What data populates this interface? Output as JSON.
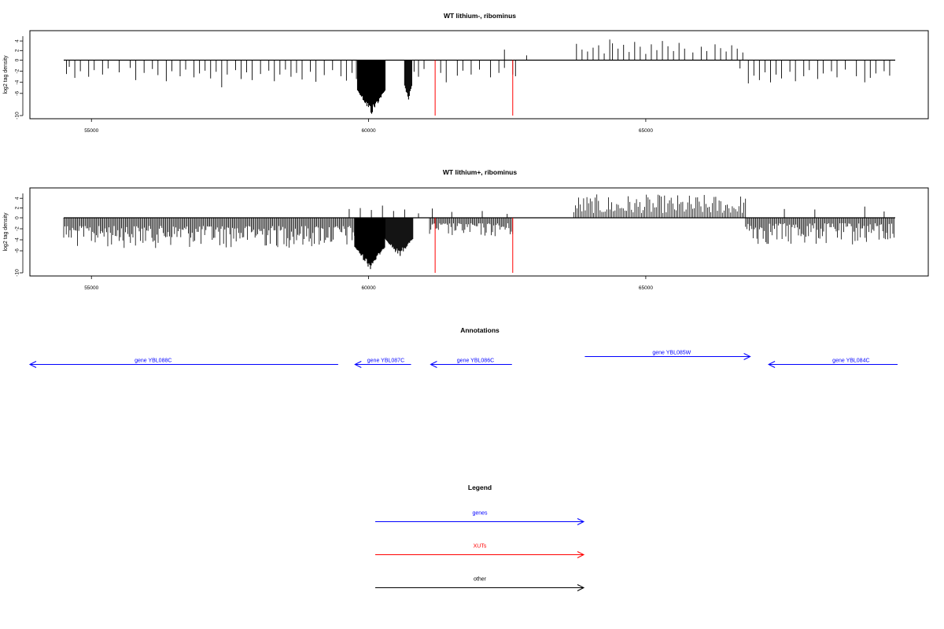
{
  "chart_data": [
    {
      "type": "bar",
      "title": "WT lithium-, ribominus",
      "xlabel": "",
      "ylabel": "log2 tag density",
      "xlim": [
        53900,
        70000
      ],
      "ylim": [
        -10,
        5
      ],
      "x_ticks": [
        55000,
        60000,
        65000
      ],
      "x_tick_labels": [
        "55000",
        "60000",
        "65000"
      ],
      "y_ticks": [
        4,
        2,
        0,
        -2,
        -4,
        -6,
        -10
      ],
      "y_tick_labels": [
        "4",
        "2",
        "0",
        "-2",
        "-4",
        "-6",
        "-10"
      ],
      "grid": false,
      "baseline": {
        "y": 0,
        "x_range": [
          54500,
          69500
        ]
      },
      "series": [
        {
          "style": "negative-bars",
          "color": "#000000",
          "points": [
            [
              54550,
              -2.5
            ],
            [
              54600,
              -1.2
            ],
            [
              54700,
              -3.2
            ],
            [
              54800,
              -2.0
            ],
            [
              54950,
              -3.0
            ],
            [
              55050,
              -1.8
            ],
            [
              55200,
              -2.6
            ],
            [
              55300,
              -1.5
            ],
            [
              55500,
              -2.2
            ],
            [
              55700,
              -1.4
            ],
            [
              55800,
              -3.6
            ],
            [
              55950,
              -2.3
            ],
            [
              56100,
              -1.6
            ],
            [
              56200,
              -2.7
            ],
            [
              56350,
              -3.8
            ],
            [
              56450,
              -2.0
            ],
            [
              56600,
              -2.9
            ],
            [
              56700,
              -1.7
            ],
            [
              56850,
              -3.1
            ],
            [
              56950,
              -2.4
            ],
            [
              57050,
              -1.9
            ],
            [
              57150,
              -3.3
            ],
            [
              57250,
              -2.1
            ],
            [
              57350,
              -4.9
            ],
            [
              57450,
              -2.6
            ],
            [
              57600,
              -1.8
            ],
            [
              57700,
              -3.4
            ],
            [
              57800,
              -2.2
            ],
            [
              57900,
              -3.6
            ],
            [
              58050,
              -2.5
            ],
            [
              58200,
              -1.9
            ],
            [
              58300,
              -3.8
            ],
            [
              58400,
              -2.6
            ],
            [
              58500,
              -1.7
            ],
            [
              58600,
              -3.0
            ],
            [
              58700,
              -2.3
            ],
            [
              58800,
              -3.5
            ],
            [
              58950,
              -2.1
            ],
            [
              59050,
              -3.9
            ],
            [
              59200,
              -2.7
            ],
            [
              59350,
              -1.8
            ],
            [
              59500,
              -2.9
            ],
            [
              59600,
              -3.7
            ],
            [
              59700,
              -2.3
            ],
            [
              59780,
              -3.4
            ],
            [
              60820,
              -2.1
            ],
            [
              60900,
              -3.0
            ],
            [
              61000,
              -1.6
            ],
            [
              61300,
              -2.3
            ],
            [
              61400,
              -4.0
            ],
            [
              61600,
              -2.8
            ],
            [
              61700,
              -1.9
            ],
            [
              61850,
              -2.6
            ],
            [
              62000,
              -1.7
            ],
            [
              62200,
              -3.1
            ],
            [
              62350,
              -2.3
            ],
            [
              62450,
              -1.4
            ],
            [
              62600,
              -2.6
            ],
            [
              62650,
              -2.9
            ],
            [
              66700,
              -1.5
            ],
            [
              66850,
              -4.2
            ],
            [
              66950,
              -2.8
            ],
            [
              67050,
              -3.6
            ],
            [
              67150,
              -2.2
            ],
            [
              67250,
              -4.0
            ],
            [
              67350,
              -2.6
            ],
            [
              67450,
              -3.3
            ],
            [
              67600,
              -2.1
            ],
            [
              67700,
              -3.8
            ],
            [
              67850,
              -2.9
            ],
            [
              67950,
              -1.8
            ],
            [
              68100,
              -3.4
            ],
            [
              68200,
              -2.4
            ],
            [
              68350,
              -2.0
            ],
            [
              68450,
              -3.1
            ],
            [
              68600,
              -1.7
            ],
            [
              68800,
              -2.9
            ],
            [
              68950,
              -4.0
            ],
            [
              69050,
              -3.2
            ],
            [
              69150,
              -2.4
            ],
            [
              69300,
              -2.0
            ],
            [
              69400,
              -2.8
            ]
          ]
        },
        {
          "style": "dense-negative-block",
          "color": "#000000",
          "x_range": [
            59800,
            60300
          ],
          "depth": [
            -3,
            -10
          ]
        },
        {
          "style": "dense-negative-block",
          "color": "#000000",
          "x_range": [
            60650,
            60780
          ],
          "depth": [
            -3,
            -7.5
          ]
        },
        {
          "style": "positive-bars",
          "color": "#000000",
          "points": [
            [
              62450,
              2.2
            ],
            [
              62850,
              1.0
            ],
            [
              63750,
              3.4
            ],
            [
              63850,
              2.2
            ],
            [
              63950,
              1.8
            ],
            [
              64050,
              2.6
            ],
            [
              64150,
              3.1
            ],
            [
              64250,
              1.4
            ],
            [
              64350,
              4.3
            ],
            [
              64400,
              3.5
            ],
            [
              64500,
              2.4
            ],
            [
              64600,
              3.2
            ],
            [
              64700,
              1.7
            ],
            [
              64800,
              3.8
            ],
            [
              64900,
              2.8
            ],
            [
              65000,
              1.3
            ],
            [
              65100,
              3.3
            ],
            [
              65200,
              2.1
            ],
            [
              65300,
              4.0
            ],
            [
              65400,
              2.9
            ],
            [
              65500,
              1.9
            ],
            [
              65600,
              3.6
            ],
            [
              65700,
              2.4
            ],
            [
              65850,
              1.6
            ],
            [
              66000,
              2.8
            ],
            [
              66100,
              1.9
            ],
            [
              66250,
              3.3
            ],
            [
              66350,
              2.5
            ],
            [
              66450,
              1.8
            ],
            [
              66550,
              3.1
            ],
            [
              66650,
              2.4
            ],
            [
              66750,
              1.6
            ]
          ]
        },
        {
          "style": "xut-markers",
          "color": "#ff0000",
          "x": [
            61200,
            62600
          ],
          "depth": -10
        }
      ]
    },
    {
      "type": "bar",
      "title": "WT lithium+, ribominus",
      "xlabel": "",
      "ylabel": "log2 tag density",
      "xlim": [
        53900,
        70000
      ],
      "ylim": [
        -10,
        5
      ],
      "x_ticks": [
        55000,
        60000,
        65000
      ],
      "x_tick_labels": [
        "55000",
        "60000",
        "65000"
      ],
      "y_ticks": [
        4,
        2,
        0,
        -2,
        -4,
        -6,
        -10
      ],
      "y_tick_labels": [
        "4",
        "2",
        "0",
        "-2",
        "-4",
        "-6",
        "-10"
      ],
      "grid": false,
      "baseline": {
        "y": 0,
        "x_range": [
          54500,
          69500
        ]
      },
      "series": [
        {
          "style": "dense-negative-band",
          "color": "#000000",
          "x_range": [
            54500,
            59800
          ],
          "depth": [
            -1.5,
            -5.5
          ]
        },
        {
          "style": "dense-negative-block",
          "color": "#000000",
          "x_range": [
            59750,
            60300
          ],
          "depth": [
            -3,
            -9.5
          ]
        },
        {
          "style": "dense-negative-block",
          "color": "#000000",
          "x_range": [
            60300,
            60800
          ],
          "depth": [
            -2,
            -7.2
          ]
        },
        {
          "style": "dense-negative-band",
          "color": "#000000",
          "x_range": [
            61100,
            62600
          ],
          "depth": [
            -1,
            -3.5
          ]
        },
        {
          "style": "dense-negative-band",
          "color": "#000000",
          "x_range": [
            66800,
            69500
          ],
          "depth": [
            -1,
            -5
          ]
        },
        {
          "style": "dense-positive-band",
          "color": "#000000",
          "x_range": [
            63700,
            66800
          ],
          "height": [
            1,
            4.8
          ]
        },
        {
          "style": "positive-bars",
          "color": "#000000",
          "points": [
            [
              59650,
              1.8
            ],
            [
              59850,
              2.0
            ],
            [
              60050,
              1.6
            ],
            [
              60250,
              2.5
            ],
            [
              60450,
              1.4
            ],
            [
              60650,
              1.7
            ],
            [
              60900,
              0.9
            ],
            [
              61150,
              1.9
            ],
            [
              61500,
              1.2
            ],
            [
              62050,
              1.4
            ],
            [
              62500,
              0.8
            ],
            [
              67500,
              1.8
            ],
            [
              68050,
              1.7
            ],
            [
              68950,
              2.3
            ],
            [
              69300,
              1.3
            ]
          ]
        },
        {
          "style": "xut-markers",
          "color": "#ff0000",
          "x": [
            61200,
            62600
          ],
          "depth": -10
        }
      ]
    }
  ],
  "annotations": {
    "title": "Annotations",
    "genes": [
      {
        "label": "gene YBL088C",
        "strand": "-",
        "start": 53900,
        "end": 59400,
        "label_x": 56100
      },
      {
        "label": "gene YBL087C",
        "strand": "-",
        "start": 59700,
        "end": 60700,
        "label_x": 60250
      },
      {
        "label": "gene YBL086C",
        "strand": "-",
        "start": 61050,
        "end": 62500,
        "label_x": 61850
      },
      {
        "label": "gene YBL085W",
        "strand": "+",
        "start": 63800,
        "end": 66750,
        "label_x": 65350
      },
      {
        "label": "gene YBL084C",
        "strand": "-",
        "start": 67080,
        "end": 69380,
        "label_x": 68550
      }
    ],
    "color": "#0000ff"
  },
  "legend": {
    "title": "Legend",
    "items": [
      {
        "label": "genes",
        "color": "#0000ff"
      },
      {
        "label": "XUTs",
        "color": "#ff0000"
      },
      {
        "label": "other",
        "color": "#000000"
      }
    ]
  }
}
